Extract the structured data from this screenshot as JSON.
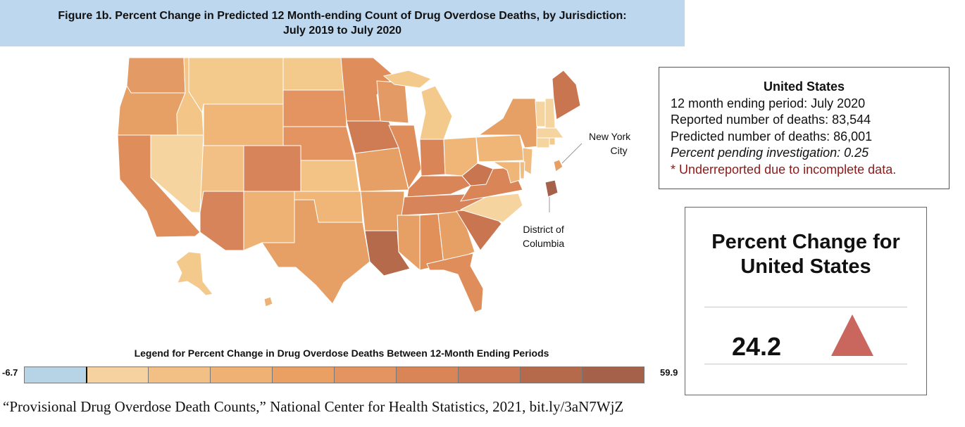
{
  "title": {
    "line1": "Figure 1b. Percent Change in Predicted 12 Month-ending Count of Drug Overdose Deaths, by Jurisdiction:",
    "line2": "July 2019 to July 2020"
  },
  "callouts": {
    "nyc": [
      "New York",
      "City"
    ],
    "dc": [
      "District of",
      "Columbia"
    ]
  },
  "info_box": {
    "title": "United States",
    "period": "12 month ending period: July 2020",
    "reported": "Reported number of deaths:  83,544",
    "predicted": "Predicted number of deaths:  86,001",
    "pending": "Percent pending investigation: 0.25",
    "footnote": "* Underreported due to incomplete data."
  },
  "change_box": {
    "title_line1": "Percent Change for",
    "title_line2": "United States",
    "value": "24.2",
    "trend_icon": "triangle-up-icon",
    "trend_color": "#c9675f"
  },
  "legend": {
    "title": "Legend for Percent Change in Drug Overdose Deaths Between 12-Month Ending Periods",
    "min": "-6.7",
    "max": "59.9",
    "colors": [
      "#b6d4e6",
      "#f6d2a0",
      "#f2c085",
      "#efb274",
      "#ea9f63",
      "#e39460",
      "#d98558",
      "#cc7852",
      "#b56a4c",
      "#a6614a"
    ]
  },
  "citation": "“Provisional Drug Overdose Death Counts,” National Center for Health Statistics, 2021, bit.ly/3aN7WjZ"
}
